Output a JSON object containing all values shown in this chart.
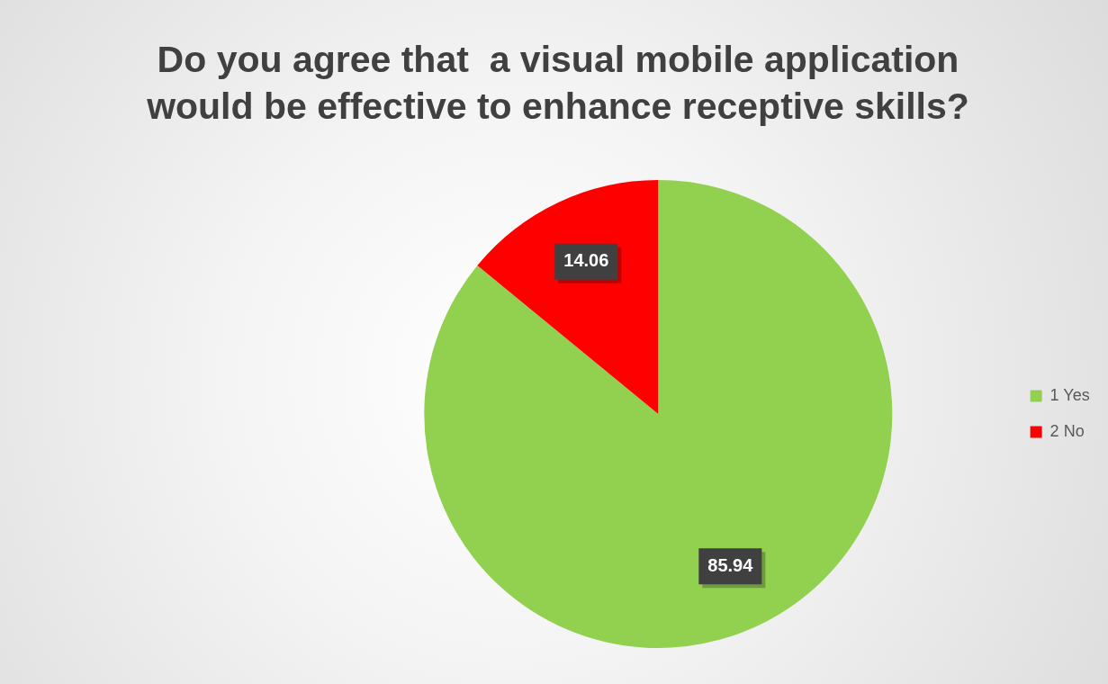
{
  "chart_data": {
    "type": "pie",
    "title": "Do you agree that  a visual mobile application would be effective to enhance receptive skills?",
    "categories": [
      "1 Yes",
      "2 No"
    ],
    "values": [
      85.94,
      14.06
    ],
    "colors": [
      "#92d050",
      "#ff0000"
    ],
    "data_labels": true,
    "legend": "right"
  }
}
